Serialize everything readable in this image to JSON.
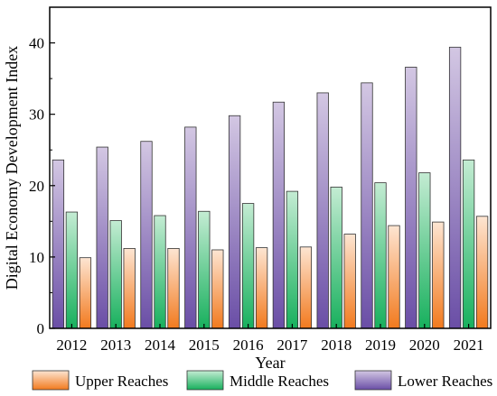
{
  "chart_data": {
    "type": "bar",
    "xlabel": "Year",
    "ylabel": "Digital Economy Development Index",
    "ylim": [
      0,
      45
    ],
    "yticks": [
      "0",
      "10",
      "20",
      "30",
      "40"
    ],
    "categories": [
      "2012",
      "2013",
      "2014",
      "2015",
      "2016",
      "2017",
      "2018",
      "2019",
      "2020",
      "2021"
    ],
    "series": [
      {
        "name": "Lower Reaches",
        "values": [
          23.6,
          25.4,
          26.2,
          28.2,
          29.8,
          31.7,
          33.0,
          34.4,
          36.6,
          39.4
        ],
        "color_top": "#d3c7e3",
        "color_bottom": "#6a4ea6"
      },
      {
        "name": "Middle Reaches",
        "values": [
          16.3,
          15.1,
          15.8,
          16.4,
          17.5,
          19.2,
          19.8,
          20.4,
          21.8,
          23.6
        ],
        "color_top": "#c4ecd3",
        "color_bottom": "#17b05d"
      },
      {
        "name": "Upper Reaches",
        "values": [
          9.9,
          11.2,
          11.2,
          11.0,
          11.3,
          11.4,
          13.2,
          14.4,
          14.9,
          15.7
        ],
        "color_top": "#fde5d2",
        "color_bottom": "#f27a1e"
      }
    ],
    "legend_order": [
      "Upper Reaches",
      "Middle Reaches",
      "Lower Reaches"
    ],
    "legend_position": "bottom",
    "grid": false
  }
}
